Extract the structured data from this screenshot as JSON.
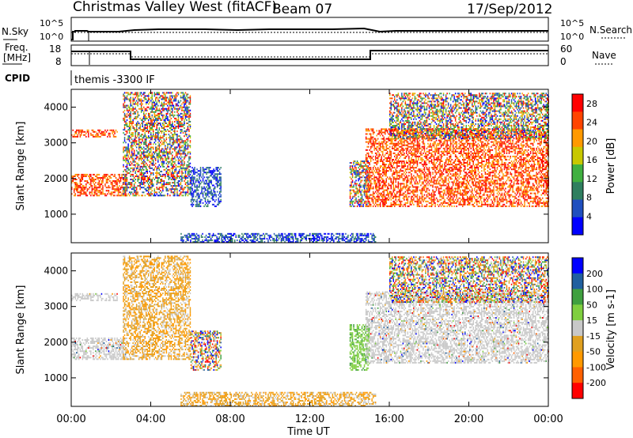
{
  "header": {
    "station": "Christmas Valley West (fitACF)",
    "beam": "Beam 07",
    "date": "17/Sep/2012"
  },
  "noise_panel": {
    "left_label": "N.Sky",
    "right_label": "N.Search",
    "left_ticks": [
      "10^5",
      "10^0"
    ],
    "right_ticks": [
      "10^5",
      "10^0"
    ]
  },
  "freq_panel": {
    "left_label_1": "Freq.",
    "left_label_2": "[MHz]",
    "right_label": "Nave",
    "left_ticks": [
      "18",
      "8"
    ],
    "right_ticks": [
      "60",
      "0"
    ]
  },
  "cpid": {
    "label": "CPID",
    "value": "themis -3300 IF"
  },
  "x_axis": {
    "label": "Time UT",
    "ticks": [
      "00:00",
      "04:00",
      "08:00",
      "12:00",
      "16:00",
      "20:00",
      "00:00"
    ]
  },
  "colors": {
    "power": [
      "#0000ff",
      "#1f4fbf",
      "#2f7f5f",
      "#40b040",
      "#c8c800",
      "#ff9900",
      "#ff4400",
      "#ff0000"
    ],
    "velocity": [
      "#ff0000",
      "#ff6000",
      "#ff9900",
      "#e0a020",
      "#c8c8c8",
      "#7fcf3f",
      "#3fa03f",
      "#205f9f",
      "#0000ff"
    ]
  },
  "chart_data": [
    {
      "type": "heatmap",
      "name": "power",
      "ylabel": "Slant Range [km]",
      "y_ticks": [
        "1000",
        "2000",
        "3000",
        "4000"
      ],
      "ylim": [
        200,
        4500
      ],
      "xlim_hours": [
        0,
        24
      ],
      "colorbar": {
        "label": "Power [dB]",
        "ticks": [
          "4",
          "8",
          "12",
          "16",
          "20",
          "24",
          "28"
        ],
        "range": [
          0,
          30
        ]
      },
      "regions": [
        {
          "t0": 0.0,
          "t1": 2.3,
          "r0": 3150,
          "r1": 3350,
          "level": "high"
        },
        {
          "t0": 0.0,
          "t1": 2.8,
          "r0": 1500,
          "r1": 2100,
          "level": "high"
        },
        {
          "t0": 2.6,
          "t1": 6.0,
          "r0": 1500,
          "r1": 4400,
          "level": "mixed"
        },
        {
          "t0": 6.0,
          "t1": 7.5,
          "r0": 1200,
          "r1": 2300,
          "level": "low"
        },
        {
          "t0": 14.0,
          "t1": 15.0,
          "r0": 1200,
          "r1": 2500,
          "level": "mixed"
        },
        {
          "t0": 14.8,
          "t1": 24.0,
          "r0": 1200,
          "r1": 3400,
          "level": "high"
        },
        {
          "t0": 16.0,
          "t1": 24.0,
          "r0": 3100,
          "r1": 4400,
          "level": "mixed"
        },
        {
          "t0": 5.5,
          "t1": 15.3,
          "r0": 200,
          "r1": 450,
          "level": "low"
        }
      ]
    },
    {
      "type": "heatmap",
      "name": "velocity",
      "ylabel": "Slant Range [km]",
      "y_ticks": [
        "1000",
        "2000",
        "3000",
        "4000"
      ],
      "ylim": [
        200,
        4500
      ],
      "xlim_hours": [
        0,
        24
      ],
      "colorbar": {
        "label": "Velocity [m s-1]",
        "ticks": [
          "200",
          "100",
          "50",
          "15",
          "-15",
          "-50",
          "-100",
          "-200"
        ],
        "range": [
          -250,
          250
        ]
      },
      "regions": [
        {
          "t0": 0.0,
          "t1": 2.3,
          "r0": 3150,
          "r1": 3350,
          "level": "ground"
        },
        {
          "t0": 0.0,
          "t1": 2.8,
          "r0": 1500,
          "r1": 2100,
          "level": "ground"
        },
        {
          "t0": 2.6,
          "t1": 6.0,
          "r0": 1500,
          "r1": 4400,
          "level": "away"
        },
        {
          "t0": 6.0,
          "t1": 7.5,
          "r0": 1200,
          "r1": 2300,
          "level": "mixed"
        },
        {
          "t0": 14.0,
          "t1": 15.0,
          "r0": 1200,
          "r1": 2500,
          "level": "toward"
        },
        {
          "t0": 14.8,
          "t1": 24.0,
          "r0": 1400,
          "r1": 3400,
          "level": "ground"
        },
        {
          "t0": 16.0,
          "t1": 24.0,
          "r0": 3100,
          "r1": 4400,
          "level": "mixed"
        },
        {
          "t0": 5.5,
          "t1": 15.3,
          "r0": 200,
          "r1": 600,
          "level": "away"
        }
      ]
    }
  ]
}
